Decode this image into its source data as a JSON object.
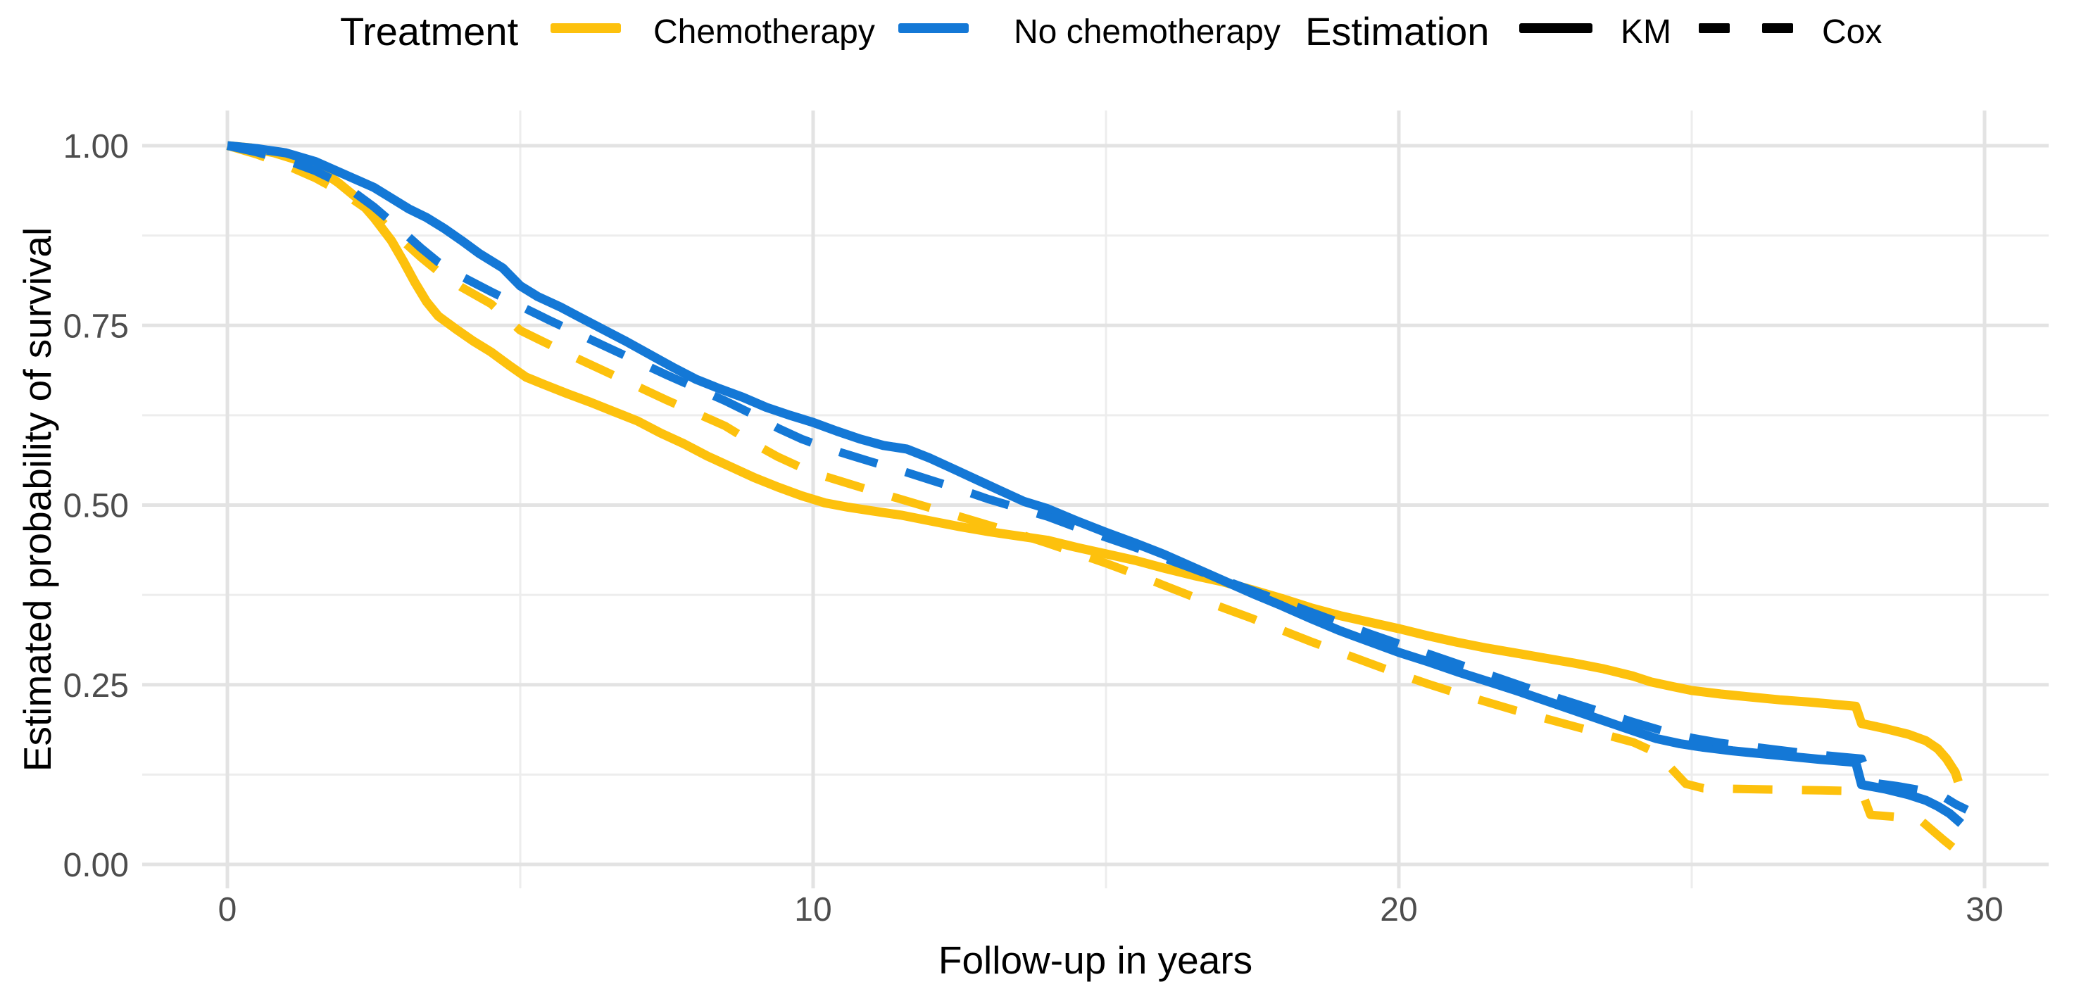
{
  "legend": {
    "treatment_title": "Treatment",
    "estimation_title": "Estimation",
    "treatment_items": [
      {
        "label": "Chemotherapy",
        "color": "#FDC10D"
      },
      {
        "label": "No chemotherapy",
        "color": "#1478D6"
      }
    ],
    "estimation_items": [
      {
        "label": "KM",
        "style": "solid",
        "color": "#000000"
      },
      {
        "label": "Cox",
        "style": "dashed",
        "color": "#000000"
      }
    ]
  },
  "theme": {
    "background": "#FFFFFF",
    "grid_major_color": "#E3E3E3",
    "grid_minor_color": "#EDEDED",
    "tick_label_color": "#4D4D4D",
    "axis_title_color": "#000000"
  },
  "chart_data": {
    "type": "line",
    "title": "",
    "xlabel": "Follow-up in years",
    "ylabel": "Estimated probability of survival",
    "xlim": [
      0,
      30
    ],
    "ylim": [
      0,
      1
    ],
    "grid": "major+minor",
    "legend_position": "top",
    "x_ticks": [
      {
        "value": 0,
        "label": "0"
      },
      {
        "value": 10,
        "label": "10"
      },
      {
        "value": 20,
        "label": "20"
      },
      {
        "value": 30,
        "label": "30"
      }
    ],
    "x_minor_ticks": [
      5,
      15,
      25
    ],
    "y_ticks": [
      {
        "value": 0,
        "label": "0.00"
      },
      {
        "value": 0.25,
        "label": "0.25"
      },
      {
        "value": 0.5,
        "label": "0.50"
      },
      {
        "value": 0.75,
        "label": "0.75"
      },
      {
        "value": 1,
        "label": "1.00"
      }
    ],
    "y_minor_ticks": [
      0.125,
      0.375,
      0.625,
      0.875
    ],
    "series": [
      {
        "name": "Chemotherapy KM",
        "treatment": "Chemotherapy",
        "estimation": "KM",
        "color": "#FDC10D",
        "line": "solid",
        "points": [
          [
            0,
            1
          ],
          [
            0.4,
            0.997
          ],
          [
            0.8,
            0.99
          ],
          [
            1.2,
            0.98
          ],
          [
            1.6,
            0.965
          ],
          [
            1.9,
            0.948
          ],
          [
            2.2,
            0.928
          ],
          [
            2.5,
            0.9
          ],
          [
            2.8,
            0.868
          ],
          [
            3,
            0.84
          ],
          [
            3.2,
            0.81
          ],
          [
            3.4,
            0.783
          ],
          [
            3.6,
            0.763
          ],
          [
            3.9,
            0.745
          ],
          [
            4.2,
            0.728
          ],
          [
            4.5,
            0.713
          ],
          [
            4.8,
            0.695
          ],
          [
            5.1,
            0.678
          ],
          [
            5.4,
            0.668
          ],
          [
            5.8,
            0.655
          ],
          [
            6.2,
            0.643
          ],
          [
            6.6,
            0.63
          ],
          [
            7,
            0.617
          ],
          [
            7.4,
            0.6
          ],
          [
            7.8,
            0.585
          ],
          [
            8.2,
            0.568
          ],
          [
            8.6,
            0.553
          ],
          [
            9,
            0.538
          ],
          [
            9.4,
            0.525
          ],
          [
            9.8,
            0.513
          ],
          [
            10.2,
            0.503
          ],
          [
            10.6,
            0.497
          ],
          [
            11,
            0.492
          ],
          [
            11.5,
            0.486
          ],
          [
            12,
            0.478
          ],
          [
            12.5,
            0.47
          ],
          [
            13,
            0.463
          ],
          [
            13.5,
            0.457
          ],
          [
            14,
            0.451
          ],
          [
            14.5,
            0.441
          ],
          [
            15,
            0.432
          ],
          [
            15.5,
            0.423
          ],
          [
            16,
            0.412
          ],
          [
            16.5,
            0.402
          ],
          [
            17,
            0.393
          ],
          [
            17.5,
            0.382
          ],
          [
            18,
            0.37
          ],
          [
            18.5,
            0.357
          ],
          [
            19,
            0.346
          ],
          [
            19.5,
            0.337
          ],
          [
            20,
            0.328
          ],
          [
            20.5,
            0.318
          ],
          [
            21,
            0.309
          ],
          [
            21.5,
            0.301
          ],
          [
            22,
            0.294
          ],
          [
            22.5,
            0.287
          ],
          [
            23,
            0.28
          ],
          [
            23.5,
            0.272
          ],
          [
            24,
            0.262
          ],
          [
            24.3,
            0.254
          ],
          [
            24.7,
            0.247
          ],
          [
            25,
            0.242
          ],
          [
            25.5,
            0.237
          ],
          [
            26,
            0.233
          ],
          [
            26.5,
            0.229
          ],
          [
            27,
            0.226
          ],
          [
            27.4,
            0.223
          ],
          [
            27.8,
            0.22
          ],
          [
            27.9,
            0.196
          ],
          [
            28.3,
            0.189
          ],
          [
            28.7,
            0.181
          ],
          [
            29,
            0.172
          ],
          [
            29.2,
            0.161
          ],
          [
            29.35,
            0.147
          ],
          [
            29.5,
            0.128
          ],
          [
            29.55,
            0.115
          ]
        ]
      },
      {
        "name": "No chemotherapy KM",
        "treatment": "No chemotherapy",
        "estimation": "KM",
        "color": "#1478D6",
        "line": "solid",
        "points": [
          [
            0,
            1
          ],
          [
            0.5,
            0.996
          ],
          [
            1,
            0.99
          ],
          [
            1.5,
            0.978
          ],
          [
            2,
            0.96
          ],
          [
            2.5,
            0.942
          ],
          [
            2.8,
            0.927
          ],
          [
            3.1,
            0.912
          ],
          [
            3.4,
            0.9
          ],
          [
            3.7,
            0.885
          ],
          [
            4,
            0.868
          ],
          [
            4.3,
            0.85
          ],
          [
            4.7,
            0.83
          ],
          [
            5,
            0.805
          ],
          [
            5.3,
            0.79
          ],
          [
            5.7,
            0.775
          ],
          [
            6,
            0.762
          ],
          [
            6.4,
            0.745
          ],
          [
            6.8,
            0.728
          ],
          [
            7.2,
            0.71
          ],
          [
            7.6,
            0.692
          ],
          [
            8,
            0.675
          ],
          [
            8.4,
            0.662
          ],
          [
            8.8,
            0.65
          ],
          [
            9.2,
            0.636
          ],
          [
            9.6,
            0.625
          ],
          [
            10,
            0.615
          ],
          [
            10.4,
            0.603
          ],
          [
            10.8,
            0.592
          ],
          [
            11.2,
            0.583
          ],
          [
            11.6,
            0.578
          ],
          [
            12,
            0.565
          ],
          [
            12.4,
            0.55
          ],
          [
            12.8,
            0.535
          ],
          [
            13.2,
            0.52
          ],
          [
            13.6,
            0.505
          ],
          [
            14,
            0.495
          ],
          [
            14.5,
            0.478
          ],
          [
            15,
            0.462
          ],
          [
            15.5,
            0.447
          ],
          [
            16,
            0.431
          ],
          [
            16.5,
            0.413
          ],
          [
            17,
            0.395
          ],
          [
            17.5,
            0.377
          ],
          [
            18,
            0.36
          ],
          [
            18.5,
            0.342
          ],
          [
            19,
            0.325
          ],
          [
            19.5,
            0.31
          ],
          [
            20,
            0.295
          ],
          [
            20.5,
            0.282
          ],
          [
            21,
            0.268
          ],
          [
            21.5,
            0.255
          ],
          [
            22,
            0.242
          ],
          [
            22.5,
            0.228
          ],
          [
            23,
            0.214
          ],
          [
            23.5,
            0.2
          ],
          [
            24,
            0.186
          ],
          [
            24.4,
            0.175
          ],
          [
            24.8,
            0.168
          ],
          [
            25.2,
            0.163
          ],
          [
            25.7,
            0.158
          ],
          [
            26.2,
            0.154
          ],
          [
            26.7,
            0.15
          ],
          [
            27.2,
            0.146
          ],
          [
            27.8,
            0.142
          ],
          [
            27.9,
            0.111
          ],
          [
            28.3,
            0.105
          ],
          [
            28.7,
            0.097
          ],
          [
            29,
            0.089
          ],
          [
            29.2,
            0.081
          ],
          [
            29.4,
            0.071
          ],
          [
            29.6,
            0.057
          ]
        ]
      },
      {
        "name": "Chemotherapy Cox",
        "treatment": "Chemotherapy",
        "estimation": "Cox",
        "color": "#FDC10D",
        "line": "dashed",
        "points": [
          [
            0,
            1
          ],
          [
            0.5,
            0.988
          ],
          [
            1,
            0.973
          ],
          [
            1.5,
            0.955
          ],
          [
            2,
            0.933
          ],
          [
            2.5,
            0.905
          ],
          [
            3,
            0.867
          ],
          [
            3.3,
            0.845
          ],
          [
            3.6,
            0.825
          ],
          [
            4,
            0.803
          ],
          [
            4.5,
            0.78
          ],
          [
            5,
            0.743
          ],
          [
            5.5,
            0.723
          ],
          [
            6,
            0.703
          ],
          [
            6.5,
            0.684
          ],
          [
            7,
            0.665
          ],
          [
            7.5,
            0.646
          ],
          [
            8,
            0.628
          ],
          [
            8.5,
            0.61
          ],
          [
            9,
            0.585
          ],
          [
            9.4,
            0.567
          ],
          [
            9.8,
            0.552
          ],
          [
            10.2,
            0.54
          ],
          [
            10.6,
            0.53
          ],
          [
            11,
            0.52
          ],
          [
            11.5,
            0.508
          ],
          [
            12,
            0.496
          ],
          [
            12.5,
            0.484
          ],
          [
            13,
            0.472
          ],
          [
            13.5,
            0.46
          ],
          [
            14,
            0.447
          ],
          [
            14.5,
            0.433
          ],
          [
            15,
            0.419
          ],
          [
            15.5,
            0.404
          ],
          [
            16,
            0.388
          ],
          [
            16.5,
            0.372
          ],
          [
            17,
            0.357
          ],
          [
            17.5,
            0.342
          ],
          [
            18,
            0.326
          ],
          [
            18.5,
            0.31
          ],
          [
            19,
            0.295
          ],
          [
            19.5,
            0.28
          ],
          [
            20,
            0.265
          ],
          [
            20.5,
            0.251
          ],
          [
            21,
            0.238
          ],
          [
            21.5,
            0.226
          ],
          [
            22,
            0.214
          ],
          [
            22.5,
            0.203
          ],
          [
            23,
            0.192
          ],
          [
            23.5,
            0.181
          ],
          [
            24,
            0.17
          ],
          [
            24.3,
            0.159
          ],
          [
            24.6,
            0.138
          ],
          [
            24.9,
            0.112
          ],
          [
            25.2,
            0.106
          ],
          [
            25.8,
            0.105
          ],
          [
            26.5,
            0.104
          ],
          [
            27.2,
            0.103
          ],
          [
            27.9,
            0.102
          ],
          [
            28.05,
            0.069
          ],
          [
            28.5,
            0.066
          ],
          [
            28.9,
            0.062
          ],
          [
            29.1,
            0.048
          ],
          [
            29.3,
            0.034
          ],
          [
            29.5,
            0.021
          ]
        ]
      },
      {
        "name": "No chemotherapy Cox",
        "treatment": "No chemotherapy",
        "estimation": "Cox",
        "color": "#1478D6",
        "line": "dashed",
        "points": [
          [
            0,
            1
          ],
          [
            0.5,
            0.991
          ],
          [
            1,
            0.98
          ],
          [
            1.5,
            0.965
          ],
          [
            2,
            0.945
          ],
          [
            2.5,
            0.915
          ],
          [
            3,
            0.88
          ],
          [
            3.3,
            0.858
          ],
          [
            3.6,
            0.838
          ],
          [
            4,
            0.818
          ],
          [
            4.5,
            0.797
          ],
          [
            5,
            0.777
          ],
          [
            5.5,
            0.757
          ],
          [
            6,
            0.738
          ],
          [
            6.5,
            0.719
          ],
          [
            7,
            0.7
          ],
          [
            7.5,
            0.681
          ],
          [
            8,
            0.663
          ],
          [
            8.5,
            0.645
          ],
          [
            9,
            0.625
          ],
          [
            9.4,
            0.607
          ],
          [
            9.8,
            0.592
          ],
          [
            10.2,
            0.58
          ],
          [
            10.6,
            0.57
          ],
          [
            11,
            0.56
          ],
          [
            11.5,
            0.548
          ],
          [
            12,
            0.535
          ],
          [
            12.5,
            0.522
          ],
          [
            13,
            0.508
          ],
          [
            13.5,
            0.496
          ],
          [
            14,
            0.484
          ],
          [
            14.5,
            0.469
          ],
          [
            15,
            0.455
          ],
          [
            15.5,
            0.441
          ],
          [
            16,
            0.426
          ],
          [
            16.5,
            0.411
          ],
          [
            17,
            0.396
          ],
          [
            17.5,
            0.381
          ],
          [
            18,
            0.366
          ],
          [
            18.5,
            0.351
          ],
          [
            19,
            0.336
          ],
          [
            19.5,
            0.321
          ],
          [
            20,
            0.307
          ],
          [
            20.5,
            0.293
          ],
          [
            21,
            0.279
          ],
          [
            21.5,
            0.265
          ],
          [
            22,
            0.251
          ],
          [
            22.5,
            0.237
          ],
          [
            23,
            0.224
          ],
          [
            23.5,
            0.211
          ],
          [
            24,
            0.198
          ],
          [
            24.5,
            0.186
          ],
          [
            25,
            0.176
          ],
          [
            25.5,
            0.169
          ],
          [
            26,
            0.164
          ],
          [
            26.5,
            0.159
          ],
          [
            27,
            0.154
          ],
          [
            27.5,
            0.15
          ],
          [
            27.9,
            0.147
          ],
          [
            28.05,
            0.114
          ],
          [
            28.5,
            0.109
          ],
          [
            29,
            0.102
          ],
          [
            29.3,
            0.094
          ],
          [
            29.5,
            0.084
          ],
          [
            29.7,
            0.076
          ]
        ]
      }
    ]
  }
}
